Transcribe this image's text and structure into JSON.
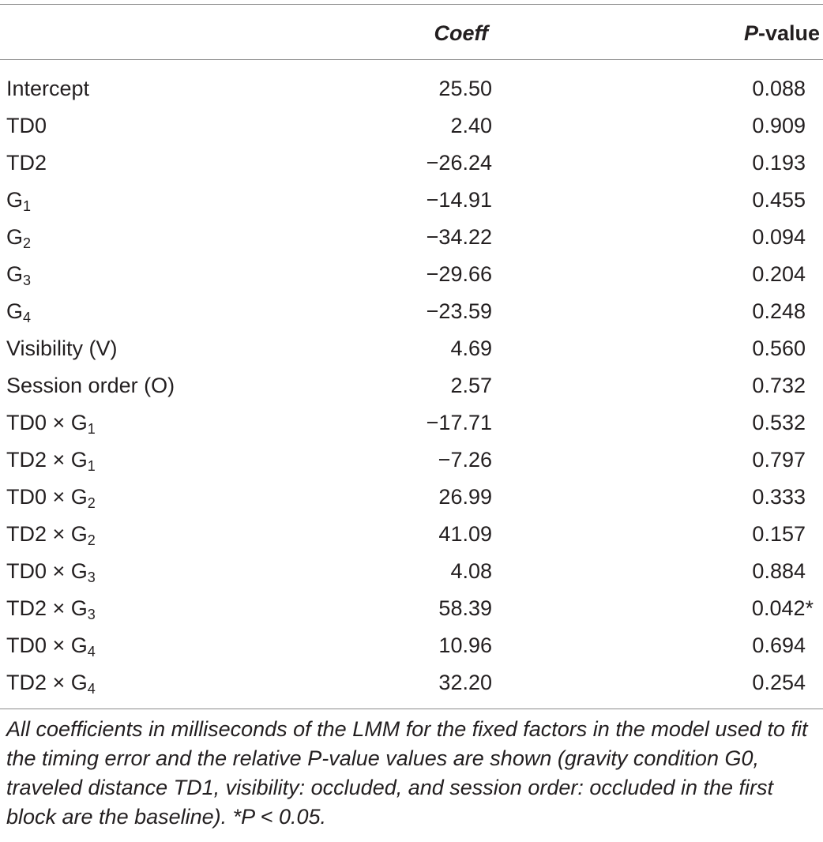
{
  "header": {
    "coeff_label": "Coeff",
    "p_label_italic": "P",
    "p_label_rest": "-value"
  },
  "rows": [
    {
      "term": "Intercept",
      "coeff": "25.50",
      "p": "0.088"
    },
    {
      "term": "TD0",
      "coeff": "2.40",
      "p": "0.909"
    },
    {
      "term": "TD2",
      "coeff": "−26.24",
      "p": "0.193"
    },
    {
      "term": "G",
      "sub": "1",
      "coeff": "−14.91",
      "p": "0.455"
    },
    {
      "term": "G",
      "sub": "2",
      "coeff": "−34.22",
      "p": "0.094"
    },
    {
      "term": "G",
      "sub": "3",
      "coeff": "−29.66",
      "p": "0.204"
    },
    {
      "term": "G",
      "sub": "4",
      "coeff": "−23.59",
      "p": "0.248"
    },
    {
      "term": "Visibility (V)",
      "coeff": "4.69",
      "p": "0.560"
    },
    {
      "term": "Session order (O)",
      "coeff": "2.57",
      "p": "0.732"
    },
    {
      "term": "TD0 × G",
      "sub": "1",
      "coeff": "−17.71",
      "p": "0.532"
    },
    {
      "term": "TD2 × G",
      "sub": "1",
      "coeff": "−7.26",
      "p": "0.797"
    },
    {
      "term": "TD0 × G",
      "sub": "2",
      "coeff": "26.99",
      "p": "0.333"
    },
    {
      "term": "TD2 × G",
      "sub": "2",
      "coeff": "41.09",
      "p": "0.157"
    },
    {
      "term": "TD0 × G",
      "sub": "3",
      "coeff": "4.08",
      "p": "0.884"
    },
    {
      "term": "TD2 × G",
      "sub": "3",
      "coeff": "58.39",
      "p": "0.042*"
    },
    {
      "term": "TD0 × G",
      "sub": "4",
      "coeff": "10.96",
      "p": "0.694"
    },
    {
      "term": "TD2 × G",
      "sub": "4",
      "coeff": "32.20",
      "p": "0.254"
    }
  ],
  "footnote": "All coefficients in milliseconds of the LMM for the fixed factors in the model used to fit the timing error and the relative P-value values are shown (gravity condition G0, traveled distance TD1, visibility: occluded, and session order: occluded in the first block are the baseline). *P < 0.05."
}
